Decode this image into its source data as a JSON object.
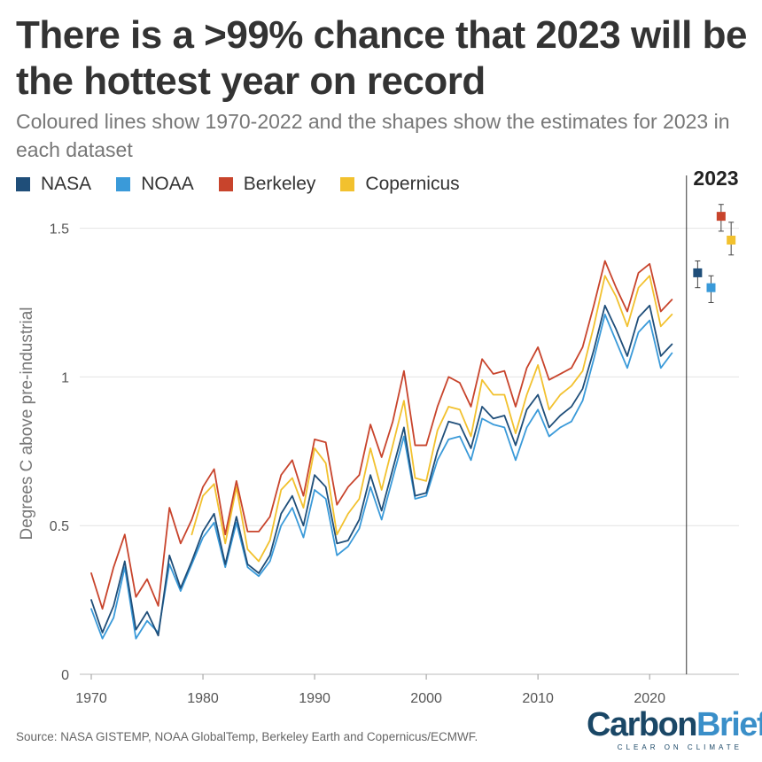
{
  "title": "There is a >99% chance that 2023 will be the hottest year on record",
  "subtitle": "Coloured lines show 1970-2022 and the shapes show the estimates for 2023 in each dataset",
  "legend": [
    {
      "name": "NASA",
      "color": "#1f4e79"
    },
    {
      "name": "NOAA",
      "color": "#3a9ad9"
    },
    {
      "name": "Berkeley",
      "color": "#c8442c"
    },
    {
      "name": "Copernicus",
      "color": "#f2c12e"
    }
  ],
  "source": "Source: NASA GISTEMP, NOAA GlobalTemp, Berkeley Earth and Copernicus/ECMWF.",
  "logo": {
    "carbon": "Carbon",
    "brief": "Brief",
    "tagline": "CLEAR ON CLIMATE"
  },
  "chart_data": {
    "type": "line",
    "title": "There is a >99% chance that 2023 will be the hottest year on record",
    "ylabel": "Degrees C above pre-industrial",
    "xlabel": "",
    "xlim": [
      1970,
      2028
    ],
    "ylim": [
      0,
      1.6
    ],
    "xticks": [
      1970,
      1980,
      1990,
      2000,
      2010,
      2020
    ],
    "xtick_labels": [
      "1970",
      "1980",
      "1990",
      "2000",
      "2010",
      "2020"
    ],
    "yticks": [
      0,
      0.5,
      1,
      1.5
    ],
    "ytick_labels": [
      "0",
      "0.5",
      "1",
      "1.5"
    ],
    "grid": "horizontal",
    "divider_year": 2023.3,
    "estimate_label": "2023",
    "x": [
      1970,
      1971,
      1972,
      1973,
      1974,
      1975,
      1976,
      1977,
      1978,
      1979,
      1980,
      1981,
      1982,
      1983,
      1984,
      1985,
      1986,
      1987,
      1988,
      1989,
      1990,
      1991,
      1992,
      1993,
      1994,
      1995,
      1996,
      1997,
      1998,
      1999,
      2000,
      2001,
      2002,
      2003,
      2004,
      2005,
      2006,
      2007,
      2008,
      2009,
      2010,
      2011,
      2012,
      2013,
      2014,
      2015,
      2016,
      2017,
      2018,
      2019,
      2020,
      2021,
      2022
    ],
    "series": [
      {
        "name": "NASA",
        "color": "#1f4e79",
        "start_year": 1970,
        "values": [
          0.25,
          0.14,
          0.23,
          0.38,
          0.15,
          0.21,
          0.13,
          0.4,
          0.29,
          0.38,
          0.48,
          0.54,
          0.37,
          0.53,
          0.37,
          0.34,
          0.4,
          0.54,
          0.6,
          0.5,
          0.67,
          0.63,
          0.44,
          0.45,
          0.52,
          0.67,
          0.55,
          0.69,
          0.83,
          0.6,
          0.61,
          0.75,
          0.85,
          0.84,
          0.76,
          0.9,
          0.86,
          0.87,
          0.77,
          0.89,
          0.94,
          0.83,
          0.87,
          0.9,
          0.96,
          1.09,
          1.24,
          1.16,
          1.07,
          1.2,
          1.24,
          1.07,
          1.11
        ]
      },
      {
        "name": "NOAA",
        "color": "#3a9ad9",
        "start_year": 1970,
        "values": [
          0.22,
          0.12,
          0.19,
          0.36,
          0.12,
          0.18,
          0.14,
          0.37,
          0.28,
          0.37,
          0.46,
          0.51,
          0.36,
          0.51,
          0.36,
          0.33,
          0.38,
          0.5,
          0.56,
          0.46,
          0.62,
          0.59,
          0.4,
          0.43,
          0.49,
          0.63,
          0.52,
          0.66,
          0.8,
          0.59,
          0.6,
          0.72,
          0.79,
          0.8,
          0.72,
          0.86,
          0.84,
          0.83,
          0.72,
          0.83,
          0.89,
          0.8,
          0.83,
          0.85,
          0.92,
          1.06,
          1.21,
          1.12,
          1.03,
          1.15,
          1.19,
          1.03,
          1.08
        ]
      },
      {
        "name": "Berkeley",
        "color": "#c8442c",
        "start_year": 1970,
        "values": [
          0.34,
          0.22,
          0.36,
          0.47,
          0.26,
          0.32,
          0.23,
          0.56,
          0.44,
          0.52,
          0.63,
          0.69,
          0.47,
          0.65,
          0.48,
          0.48,
          0.53,
          0.67,
          0.72,
          0.6,
          0.79,
          0.78,
          0.57,
          0.63,
          0.67,
          0.84,
          0.73,
          0.85,
          1.02,
          0.77,
          0.77,
          0.9,
          1.0,
          0.98,
          0.9,
          1.06,
          1.01,
          1.02,
          0.9,
          1.03,
          1.1,
          0.99,
          1.01,
          1.03,
          1.1,
          1.24,
          1.39,
          1.3,
          1.22,
          1.35,
          1.38,
          1.22,
          1.26
        ]
      },
      {
        "name": "Copernicus",
        "color": "#f2c12e",
        "start_year": 1979,
        "values": [
          null,
          null,
          null,
          null,
          null,
          null,
          null,
          null,
          null,
          0.47,
          0.6,
          0.64,
          0.44,
          0.63,
          0.42,
          0.38,
          0.45,
          0.62,
          0.66,
          0.56,
          0.76,
          0.71,
          0.47,
          0.54,
          0.59,
          0.76,
          0.62,
          0.77,
          0.92,
          0.66,
          0.65,
          0.82,
          0.9,
          0.89,
          0.8,
          0.99,
          0.94,
          0.94,
          0.81,
          0.94,
          1.04,
          0.89,
          0.94,
          0.97,
          1.02,
          1.17,
          1.34,
          1.27,
          1.17,
          1.3,
          1.34,
          1.17,
          1.21
        ]
      }
    ],
    "estimates_2023": [
      {
        "name": "NASA",
        "color": "#1f4e79",
        "x": 2024.3,
        "value": 1.35,
        "low": 1.3,
        "high": 1.39
      },
      {
        "name": "NOAA",
        "color": "#3a9ad9",
        "x": 2025.5,
        "value": 1.3,
        "low": 1.25,
        "high": 1.34
      },
      {
        "name": "Berkeley",
        "color": "#c8442c",
        "x": 2026.4,
        "value": 1.54,
        "low": 1.49,
        "high": 1.58
      },
      {
        "name": "Copernicus",
        "color": "#f2c12e",
        "x": 2027.3,
        "value": 1.46,
        "low": 1.41,
        "high": 1.52
      }
    ]
  }
}
